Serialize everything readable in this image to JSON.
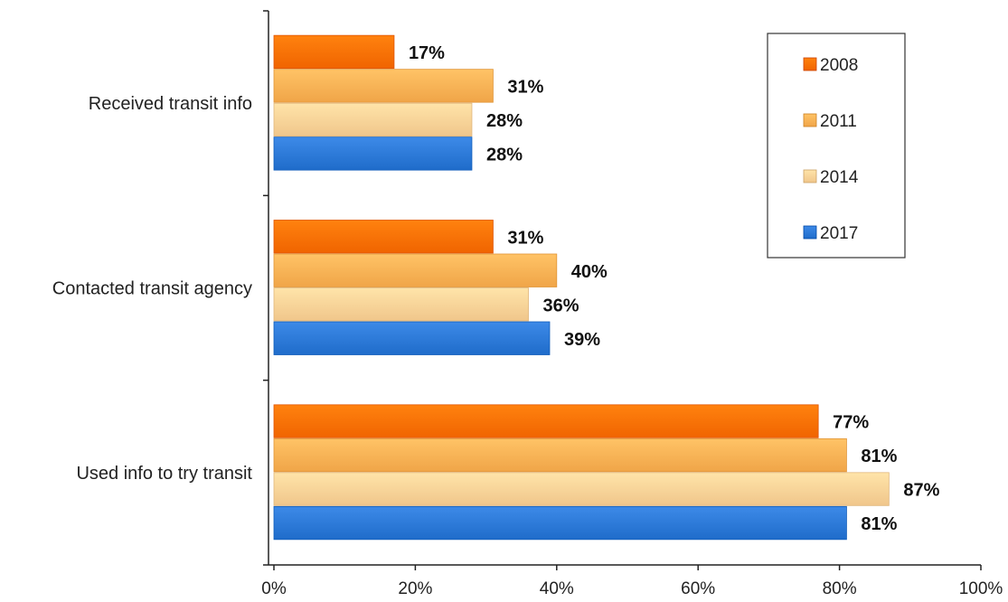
{
  "chart_data": {
    "type": "bar",
    "orientation": "horizontal",
    "categories": [
      "Received transit info",
      "Contacted transit agency",
      "Used info to try transit"
    ],
    "series": [
      {
        "name": "2008",
        "color": "#FF7300",
        "values": [
          17,
          31,
          77
        ],
        "labels": [
          "17%",
          "31%",
          "77%"
        ]
      },
      {
        "name": "2011",
        "color": "#FFB457",
        "values": [
          31,
          40,
          81
        ],
        "labels": [
          "31%",
          "40%",
          "81%"
        ]
      },
      {
        "name": "2014",
        "color": "#FFD59A",
        "values": [
          28,
          36,
          87
        ],
        "labels": [
          "28%",
          "36%",
          "87%"
        ]
      },
      {
        "name": "2017",
        "color": "#2E7BD9",
        "values": [
          28,
          39,
          81
        ],
        "labels": [
          "28%",
          "39%",
          "81%"
        ]
      }
    ],
    "xlim": [
      0,
      100
    ],
    "xticks": [
      0,
      20,
      40,
      60,
      80,
      100
    ],
    "xtick_labels": [
      "0%",
      "20%",
      "40%",
      "60%",
      "80%",
      "100%"
    ],
    "title": "",
    "xlabel": "",
    "ylabel": "",
    "grid": false,
    "legend_position": "top-right"
  }
}
